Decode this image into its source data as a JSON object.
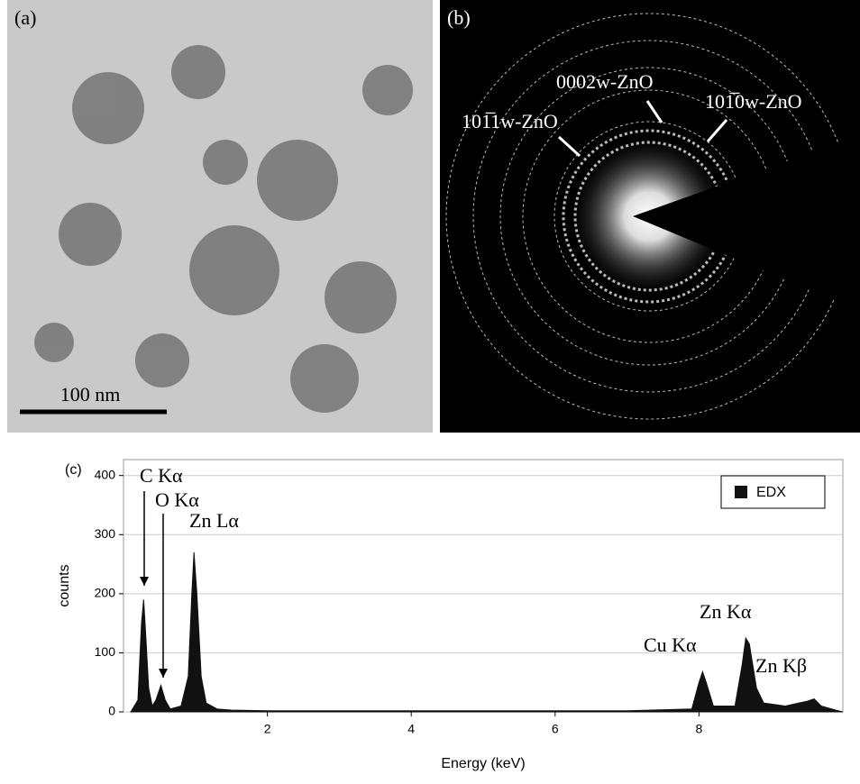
{
  "panels": [
    {
      "label": "(a)",
      "scale_bar": "100 nm"
    },
    {
      "label": "(b)",
      "annotations": [
        "101̅1w-ZnO",
        "0002w-ZnO",
        "101̅0w-ZnO"
      ]
    }
  ],
  "chart_data": {
    "type": "area",
    "label": "(c)",
    "xlabel": "Energy (keV)",
    "ylabel": "counts",
    "xlim": [
      0,
      10
    ],
    "ylim": [
      0,
      427
    ],
    "xticks": [
      2,
      4,
      6,
      8
    ],
    "yticks": [
      0,
      100,
      200,
      300,
      400
    ],
    "grid": true,
    "legend": "upper right",
    "series": [
      {
        "name": "EDX",
        "color": "#111111",
        "x": [
          0.1,
          0.2,
          0.25,
          0.28,
          0.3,
          0.35,
          0.4,
          0.45,
          0.52,
          0.58,
          0.65,
          0.8,
          0.9,
          0.95,
          0.98,
          1.02,
          1.08,
          1.15,
          1.3,
          1.5,
          2,
          3,
          4,
          5,
          6,
          7,
          7.9,
          8.0,
          8.05,
          8.1,
          8.2,
          8.5,
          8.6,
          8.65,
          8.7,
          8.8,
          8.9,
          9.2,
          9.5,
          9.6,
          9.7,
          9.9,
          10
        ],
        "values": [
          0,
          20,
          150,
          190,
          150,
          40,
          10,
          20,
          45,
          20,
          5,
          10,
          60,
          200,
          270,
          200,
          60,
          15,
          5,
          3,
          2,
          2,
          2,
          2,
          2,
          2,
          5,
          50,
          68,
          50,
          10,
          10,
          80,
          125,
          115,
          40,
          15,
          10,
          18,
          22,
          10,
          3,
          0
        ]
      }
    ],
    "annotations": [
      "C Kα",
      "O Kα",
      "Zn Lα",
      "Cu Kα",
      "Zn Kα",
      "Zn Kβ"
    ]
  }
}
